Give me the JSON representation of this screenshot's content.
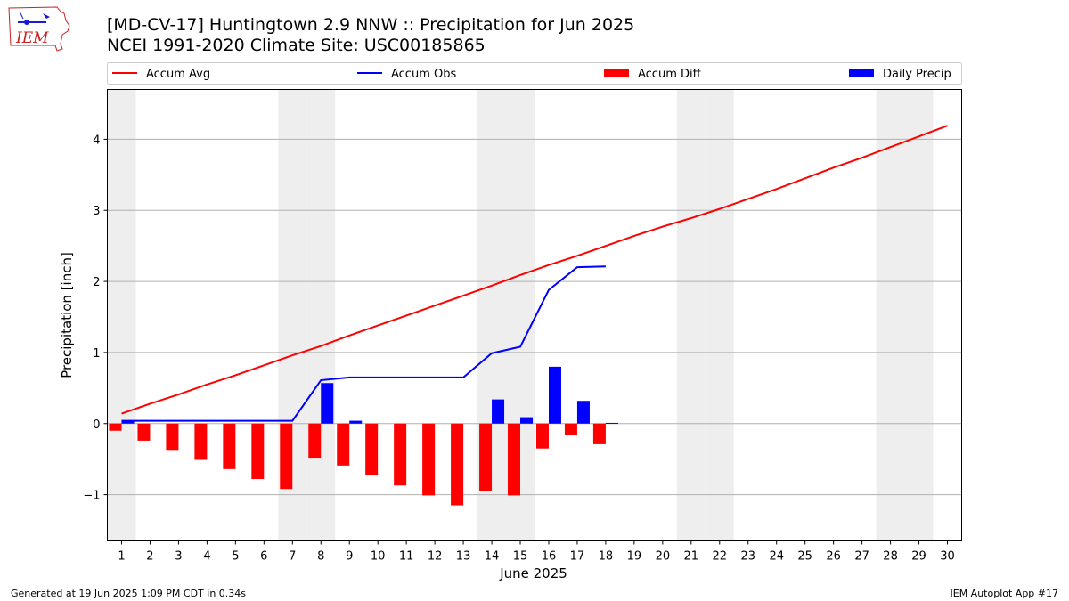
{
  "header": {
    "title_line1": "[MD-CV-17] Huntingtown 2.9 NNW :: Precipitation for Jun 2025",
    "title_line2": "NCEI 1991-2020 Climate Site: USC00185865"
  },
  "logo": {
    "text": "IEM"
  },
  "footer": {
    "generated": "Generated at 19 Jun 2025 1:09 PM CDT in 0.34s",
    "app": "IEM Autoplot App #17"
  },
  "colors": {
    "accum_avg": "#ff0000",
    "accum_obs": "#0000ff",
    "accum_diff": "#ff0000",
    "daily_precip": "#0000ff",
    "weekend_band": "#eeeeee",
    "grid": "#b0b0b0"
  },
  "chart_data": {
    "type": "bar",
    "xlabel": "June 2025",
    "ylabel": "Precipitation [inch]",
    "xlim": [
      0.5,
      30.5
    ],
    "ylim": [
      -1.65,
      4.7
    ],
    "yticks": [
      -1,
      0,
      1,
      2,
      3,
      4
    ],
    "ytick_labels": [
      "−1",
      "0",
      "1",
      "2",
      "3",
      "4"
    ],
    "x_ticks": [
      1,
      2,
      3,
      4,
      5,
      6,
      7,
      8,
      9,
      10,
      11,
      12,
      13,
      14,
      15,
      16,
      17,
      18,
      19,
      20,
      21,
      22,
      23,
      24,
      25,
      26,
      27,
      28,
      29,
      30
    ],
    "grid": "horizontal",
    "legend_position": "top",
    "legend": [
      "Accum Avg",
      "Accum Obs",
      "Accum Diff",
      "Daily Precip"
    ],
    "weekend_days": [
      1,
      7,
      8,
      14,
      15,
      21,
      22,
      28,
      29
    ],
    "series": [
      {
        "name": "Accum Avg",
        "kind": "line",
        "x": [
          1,
          2,
          3,
          4,
          5,
          6,
          7,
          8,
          9,
          10,
          11,
          12,
          13,
          14,
          15,
          16,
          17,
          18,
          19,
          20,
          21,
          22,
          23,
          24,
          25,
          26,
          27,
          28,
          29,
          30
        ],
        "values": [
          0.14,
          0.28,
          0.41,
          0.55,
          0.68,
          0.82,
          0.96,
          1.09,
          1.24,
          1.38,
          1.52,
          1.66,
          1.8,
          1.94,
          2.09,
          2.23,
          2.36,
          2.5,
          2.64,
          2.77,
          2.89,
          3.02,
          3.16,
          3.3,
          3.45,
          3.6,
          3.74,
          3.89,
          4.04,
          4.19
        ]
      },
      {
        "name": "Accum Obs",
        "kind": "line",
        "x": [
          1,
          2,
          3,
          4,
          5,
          6,
          7,
          8,
          9,
          10,
          11,
          12,
          13,
          14,
          15,
          16,
          17,
          18
        ],
        "values": [
          0.04,
          0.04,
          0.04,
          0.04,
          0.04,
          0.04,
          0.04,
          0.61,
          0.65,
          0.65,
          0.65,
          0.65,
          0.65,
          0.99,
          1.08,
          1.88,
          2.2,
          2.21
        ]
      },
      {
        "name": "Accum Diff",
        "kind": "bar",
        "x": [
          1,
          2,
          3,
          4,
          5,
          6,
          7,
          8,
          9,
          10,
          11,
          12,
          13,
          14,
          15,
          16,
          17,
          18
        ],
        "values": [
          -0.1,
          -0.24,
          -0.37,
          -0.51,
          -0.64,
          -0.78,
          -0.92,
          -0.48,
          -0.59,
          -0.73,
          -0.87,
          -1.01,
          -1.15,
          -0.95,
          -1.01,
          -0.35,
          -0.16,
          -0.29
        ]
      },
      {
        "name": "Daily Precip",
        "kind": "bar",
        "x": [
          1,
          2,
          3,
          4,
          5,
          6,
          7,
          8,
          9,
          10,
          11,
          12,
          13,
          14,
          15,
          16,
          17,
          18
        ],
        "values": [
          0.04,
          0,
          0,
          0,
          0,
          0,
          0,
          0.57,
          0.04,
          0,
          0,
          0,
          0,
          0.34,
          0.09,
          0.8,
          0.32,
          0.01
        ]
      }
    ]
  }
}
